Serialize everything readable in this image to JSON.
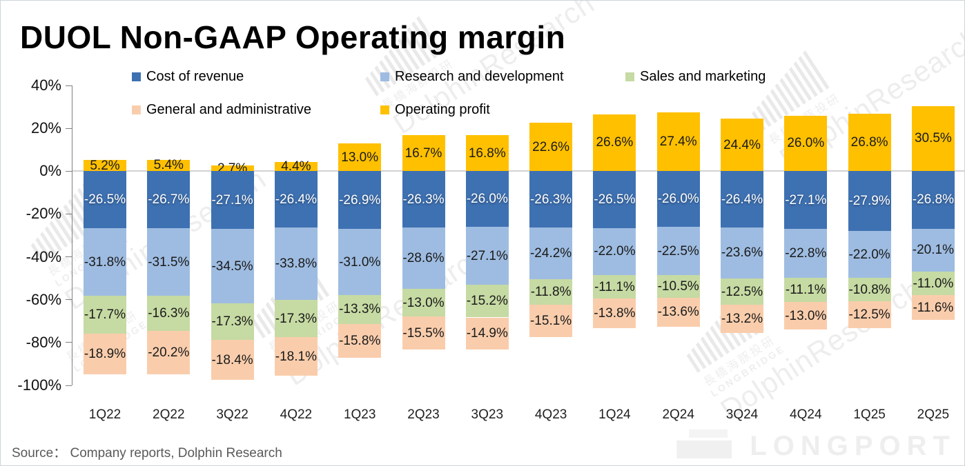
{
  "title": "DUOL Non-GAAP Operating margin",
  "source": "Source：  Company reports, Dolphin Research",
  "watermark": {
    "cn": "長橋海豚投研",
    "longbridge": "LONGBRIDGE",
    "dolphin": "DolphinResearch",
    "longport": "LONGPORT"
  },
  "chart_data": {
    "type": "bar",
    "stacked": true,
    "title": "DUOL Non-GAAP Operating margin",
    "xlabel": "",
    "ylabel": "",
    "ylim": [
      -100,
      40
    ],
    "grid": "zero-line-only",
    "legend_position": "top",
    "categories": [
      "1Q22",
      "2Q22",
      "3Q22",
      "4Q22",
      "1Q23",
      "2Q23",
      "3Q23",
      "4Q23",
      "1Q24",
      "2Q24",
      "3Q24",
      "4Q24",
      "1Q25",
      "2Q25"
    ],
    "yticks": [
      {
        "v": 40,
        "label": "40%"
      },
      {
        "v": 20,
        "label": "20%"
      },
      {
        "v": 0,
        "label": "0%"
      },
      {
        "v": -20,
        "label": "-20%"
      },
      {
        "v": -40,
        "label": "-40%"
      },
      {
        "v": -60,
        "label": "-60%"
      },
      {
        "v": -80,
        "label": "-80%"
      },
      {
        "v": -100,
        "label": "-100%"
      }
    ],
    "series": [
      {
        "name": "Cost of revenue",
        "color": "#3E71B2",
        "label_color": "#FFFFFF",
        "values": [
          -26.5,
          -26.7,
          -27.1,
          -26.4,
          -26.9,
          -26.3,
          -26.0,
          -26.3,
          -26.5,
          -26.0,
          -26.4,
          -27.1,
          -27.9,
          -26.8
        ],
        "labels": [
          "-26.5%",
          "-26.7%",
          "-27.1%",
          "-26.4%",
          "-26.9%",
          "-26.3%",
          "-26.0%",
          "-26.3%",
          "-26.5%",
          "-26.0%",
          "-26.4%",
          "-27.1%",
          "-27.9%",
          "-26.8%"
        ]
      },
      {
        "name": "Research and development",
        "color": "#9EBCE1",
        "label_color": "#1A1A1A",
        "values": [
          -31.8,
          -31.5,
          -34.5,
          -33.8,
          -31.0,
          -28.6,
          -27.1,
          -24.2,
          -22.0,
          -22.5,
          -23.6,
          -22.8,
          -22.0,
          -20.1
        ],
        "labels": [
          "-31.8%",
          "-31.5%",
          "-34.5%",
          "-33.8%",
          "-31.0%",
          "-28.6%",
          "-27.1%",
          "-24.2%",
          "-22.0%",
          "-22.5%",
          "-23.6%",
          "-22.8%",
          "-22.0%",
          "-20.1%"
        ]
      },
      {
        "name": "Sales and marketing",
        "color": "#C6DAA3",
        "label_color": "#1A1A1A",
        "values": [
          -17.7,
          -16.3,
          -17.3,
          -17.3,
          -13.3,
          -13.0,
          -15.2,
          -11.8,
          -11.1,
          -10.5,
          -12.5,
          -11.1,
          -10.8,
          -11.0
        ],
        "labels": [
          "-17.7%",
          "-16.3%",
          "-17.3%",
          "-17.3%",
          "-13.3%",
          "-13.0%",
          "-15.2%",
          "-11.8%",
          "-11.1%",
          "-10.5%",
          "-12.5%",
          "-11.1%",
          "-10.8%",
          "-11.0%"
        ]
      },
      {
        "name": "General and administrative",
        "color": "#F9CDAC",
        "label_color": "#1A1A1A",
        "values": [
          -18.9,
          -20.2,
          -18.4,
          -18.1,
          -15.8,
          -15.5,
          -14.9,
          -15.1,
          -13.8,
          -13.6,
          -13.2,
          -13.0,
          -12.5,
          -11.6
        ],
        "labels": [
          "-18.9%",
          "-20.2%",
          "-18.4%",
          "-18.1%",
          "-15.8%",
          "-15.5%",
          "-14.9%",
          "-15.1%",
          "-13.8%",
          "-13.6%",
          "-13.2%",
          "-13.0%",
          "-12.5%",
          "-11.6%"
        ]
      },
      {
        "name": "Operating profit",
        "color": "#FFC000",
        "label_color": "#1A1A1A",
        "positive": true,
        "values": [
          5.2,
          5.4,
          2.7,
          4.4,
          13.0,
          16.7,
          16.8,
          22.6,
          26.6,
          27.4,
          24.4,
          26.0,
          26.8,
          30.5
        ],
        "labels": [
          "5.2%",
          "5.4%",
          "2.7%",
          "4.4%",
          "13.0%",
          "16.7%",
          "16.8%",
          "22.6%",
          "26.6%",
          "27.4%",
          "24.4%",
          "26.0%",
          "26.8%",
          "30.5%"
        ]
      }
    ]
  }
}
